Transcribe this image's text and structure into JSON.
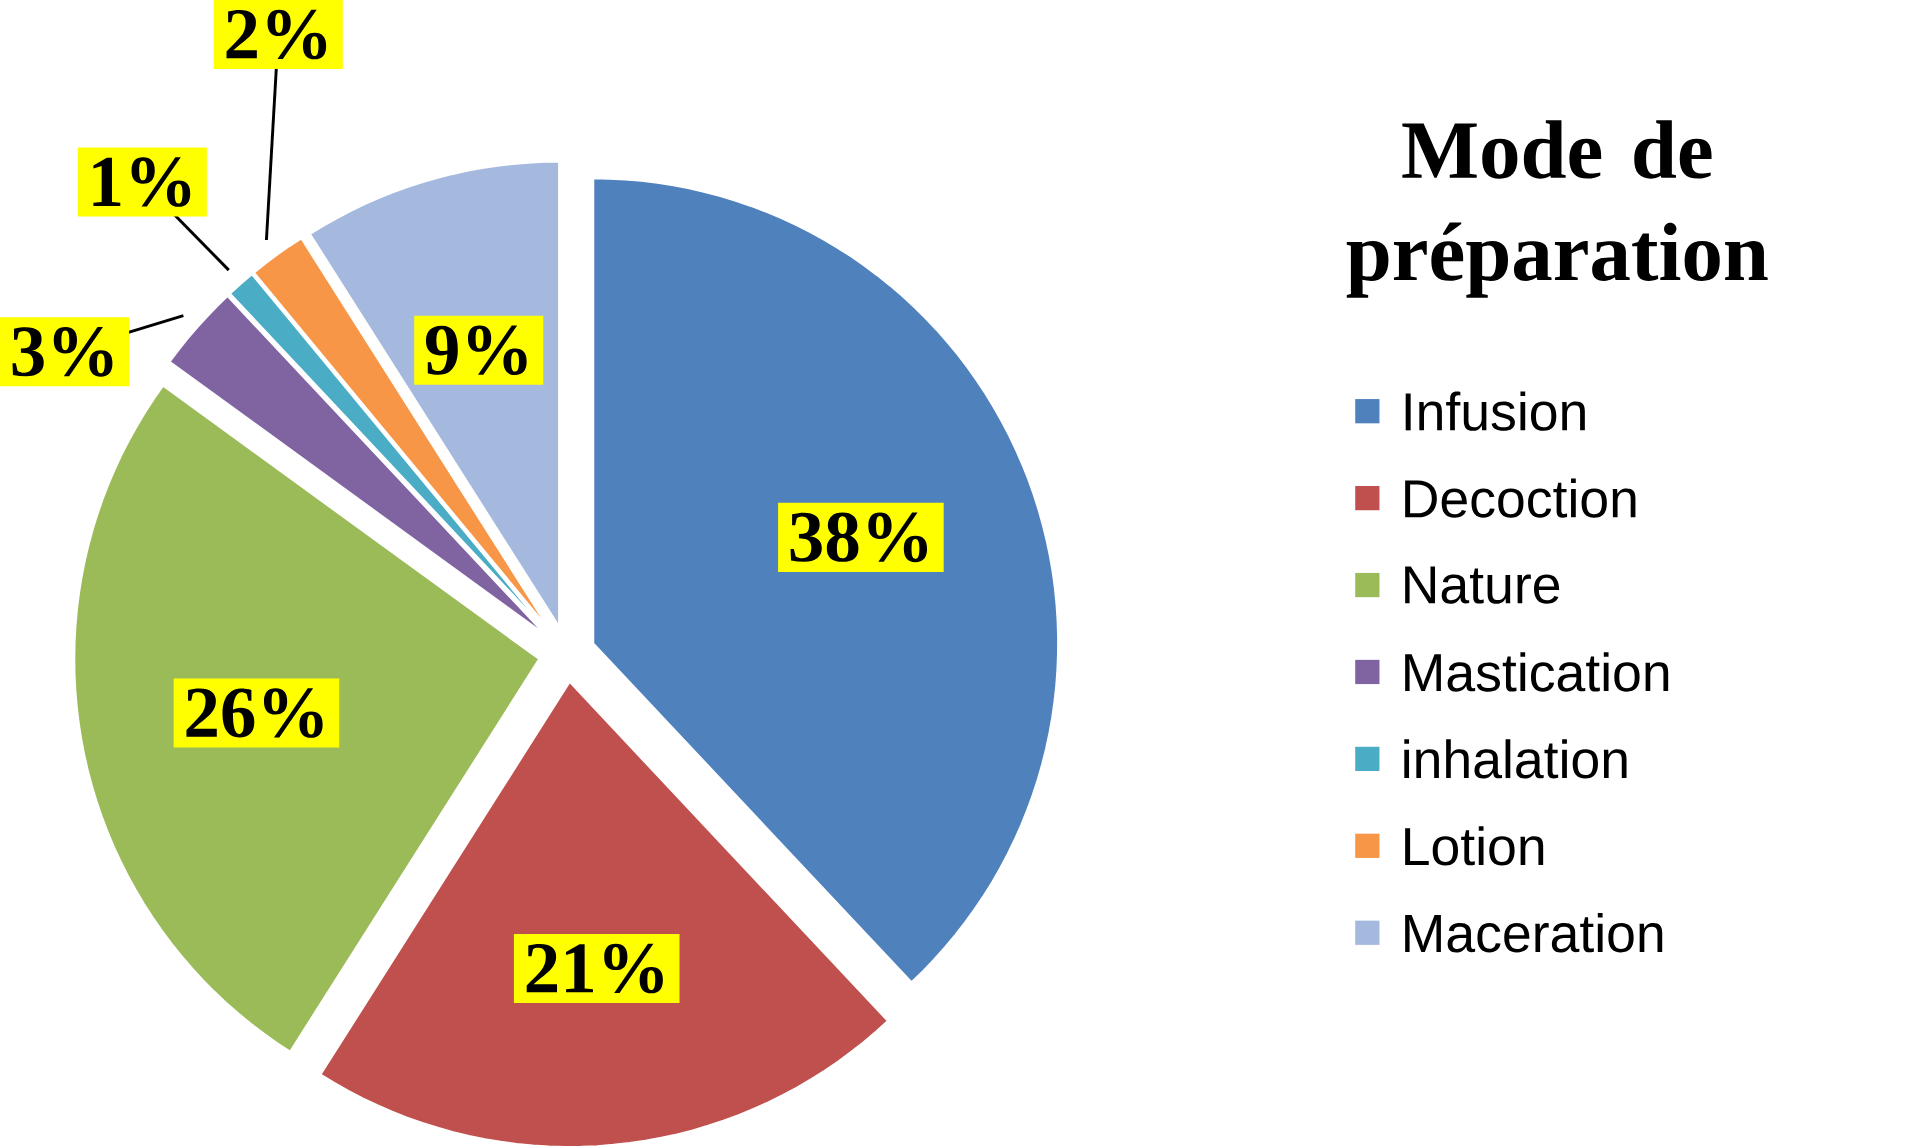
{
  "chart_data": {
    "type": "pie",
    "title": "Mode de préparation",
    "categories": [
      "Infusion",
      "Decoction",
      "Nature",
      "Mastication",
      "inhalation",
      "Lotion",
      "Maceration"
    ],
    "values": [
      38,
      21,
      26,
      3,
      1,
      2,
      9
    ],
    "value_labels": [
      "38%",
      "21%",
      "26%",
      "3%",
      "1%",
      "2%",
      "9%"
    ],
    "colors": [
      "#4f81bd",
      "#c0504d",
      "#9bbb59",
      "#8064a2",
      "#4bacc6",
      "#f79646",
      "#a5b9de"
    ],
    "legend": "right"
  }
}
